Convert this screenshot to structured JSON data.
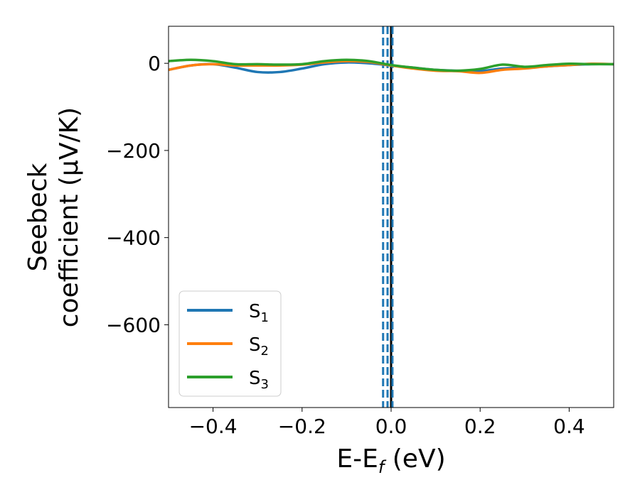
{
  "chart_data": {
    "type": "line",
    "xlabel": {
      "main": "E-E",
      "sub": "f",
      "unit": " (eV)"
    },
    "ylabel": {
      "line1": "Seebeck",
      "line2": "coefficient  (μV/K)"
    },
    "xlim": [
      -0.5,
      0.5
    ],
    "ylim": [
      -790,
      85
    ],
    "xticks": [
      -0.4,
      -0.2,
      0.0,
      0.2,
      0.4
    ],
    "xtick_labels": [
      "−0.4",
      "−0.2",
      "0.0",
      "0.2",
      "0.4"
    ],
    "yticks": [
      0,
      -200,
      -400,
      -600
    ],
    "ytick_labels": [
      "0",
      "−200",
      "−400",
      "−600"
    ],
    "grid": false,
    "legend_placement": "lower-left",
    "vlines": [
      {
        "x": 0.0,
        "color": "#000000",
        "style": "solid"
      },
      {
        "x": -0.018,
        "color": "#1f77b4",
        "style": "dashed"
      },
      {
        "x": -0.008,
        "color": "#1f77b4",
        "style": "dashed"
      },
      {
        "x": 0.003,
        "color": "#1f77b4",
        "style": "dashed"
      }
    ],
    "series": [
      {
        "name": "S",
        "sub": "1",
        "color": "#1f77b4",
        "x": [
          -0.5,
          -0.45,
          -0.4,
          -0.35,
          -0.3,
          -0.25,
          -0.2,
          -0.15,
          -0.1,
          -0.05,
          0.0,
          0.05,
          0.1,
          0.15,
          0.2,
          0.25,
          0.3,
          0.35,
          0.4,
          0.45,
          0.5
        ],
        "y": [
          -15,
          -5,
          -2,
          -10,
          -20,
          -20,
          -12,
          -2,
          2,
          0,
          -5,
          -10,
          -15,
          -17,
          -18,
          -12,
          -10,
          -7,
          -4,
          -2,
          -2
        ]
      },
      {
        "name": "S",
        "sub": "2",
        "color": "#ff7f0e",
        "x": [
          -0.5,
          -0.45,
          -0.4,
          -0.35,
          -0.3,
          -0.25,
          -0.2,
          -0.15,
          -0.1,
          -0.05,
          0.0,
          0.05,
          0.1,
          0.15,
          0.2,
          0.25,
          0.3,
          0.35,
          0.4,
          0.45,
          0.5
        ],
        "y": [
          -15,
          -5,
          -2,
          -5,
          -5,
          -5,
          -3,
          2,
          5,
          3,
          -5,
          -12,
          -17,
          -18,
          -22,
          -15,
          -12,
          -7,
          -4,
          -1,
          -2
        ]
      },
      {
        "name": "S",
        "sub": "3",
        "color": "#2ca02c",
        "x": [
          -0.5,
          -0.45,
          -0.4,
          -0.35,
          -0.3,
          -0.25,
          -0.2,
          -0.15,
          -0.1,
          -0.05,
          0.0,
          0.05,
          0.1,
          0.15,
          0.2,
          0.25,
          0.3,
          0.35,
          0.4,
          0.45,
          0.5
        ],
        "y": [
          5,
          8,
          5,
          -2,
          -2,
          -3,
          -2,
          5,
          8,
          5,
          -4,
          -10,
          -15,
          -17,
          -13,
          -3,
          -8,
          -4,
          -1,
          -2,
          -2
        ]
      }
    ]
  }
}
